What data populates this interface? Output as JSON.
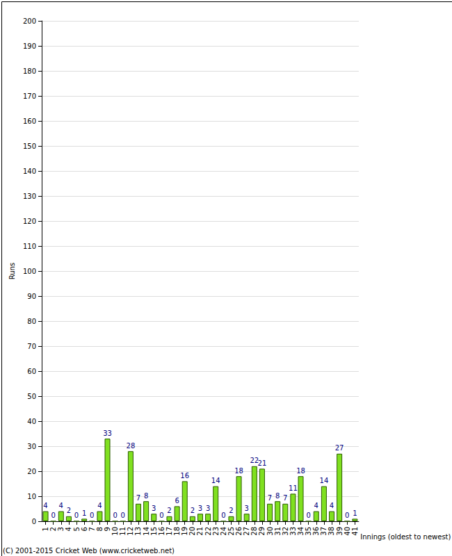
{
  "chart_data": {
    "type": "bar",
    "y_label": "Runs",
    "x_label": "Innings (oldest to newest)",
    "annotations": [
      "(C) 2001-2015 Cricket Web (www.cricketweb.net)"
    ],
    "categories": [
      "1",
      "2",
      "3",
      "4",
      "5",
      "6",
      "7",
      "8",
      "9",
      "10",
      "11",
      "12",
      "13",
      "14",
      "15",
      "16",
      "17",
      "18",
      "19",
      "20",
      "21",
      "22",
      "23",
      "24",
      "25",
      "26",
      "27",
      "28",
      "29",
      "30",
      "31",
      "32",
      "33",
      "34",
      "35",
      "36",
      "37",
      "38",
      "39",
      "40",
      "41"
    ],
    "values": [
      4,
      0,
      4,
      2,
      0,
      1,
      0,
      4,
      33,
      0,
      0,
      28,
      7,
      8,
      3,
      0,
      2,
      6,
      16,
      2,
      3,
      3,
      14,
      0,
      2,
      18,
      3,
      22,
      21,
      7,
      8,
      7,
      11,
      18,
      0,
      4,
      14,
      4,
      27,
      0,
      1
    ],
    "color": "#80e020",
    "ylim": [
      0,
      200
    ],
    "yticks": [
      0,
      10,
      20,
      30,
      40,
      50,
      60,
      70,
      80,
      90,
      100,
      110,
      120,
      130,
      140,
      150,
      160,
      170,
      180,
      190,
      200
    ],
    "grid": true,
    "data_labels": true
  }
}
